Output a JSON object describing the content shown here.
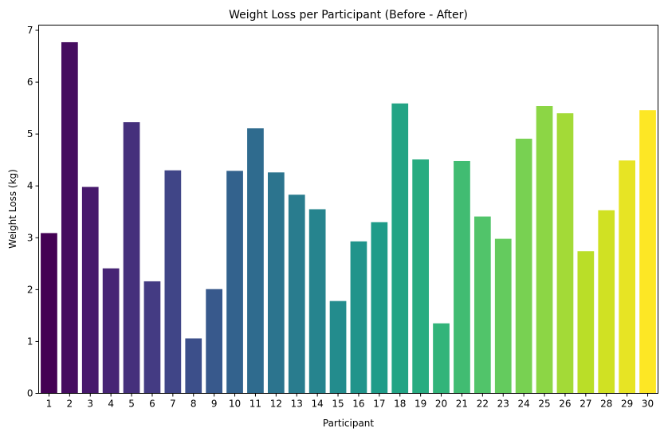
{
  "chart_data": {
    "type": "bar",
    "title": "Weight Loss per Participant (Before - After)",
    "xlabel": "Participant",
    "ylabel": "Weight Loss (kg)",
    "categories": [
      "1",
      "2",
      "3",
      "4",
      "5",
      "6",
      "7",
      "8",
      "9",
      "10",
      "11",
      "12",
      "13",
      "14",
      "15",
      "16",
      "17",
      "18",
      "19",
      "20",
      "21",
      "22",
      "23",
      "24",
      "25",
      "26",
      "27",
      "28",
      "29",
      "30"
    ],
    "values": [
      3.09,
      6.77,
      3.98,
      2.41,
      5.23,
      2.16,
      4.3,
      1.06,
      2.01,
      4.29,
      5.11,
      4.26,
      3.83,
      3.55,
      1.78,
      2.93,
      3.3,
      5.59,
      4.51,
      1.35,
      4.48,
      3.41,
      2.98,
      4.91,
      5.54,
      5.4,
      2.74,
      3.53,
      4.49,
      5.46
    ],
    "yticks": [
      "0",
      "1",
      "2",
      "3",
      "4",
      "5",
      "6",
      "7"
    ],
    "ylim": [
      0,
      7.1
    ],
    "grid": false,
    "colormap": "viridis",
    "colors": [
      "#440154",
      "#482173",
      "#433e85",
      "#38588c",
      "#2d708e",
      "#25858e",
      "#1e9b8a",
      "#2ab07f",
      "#52c569",
      "#86d549",
      "#c2df23",
      "#fde725"
    ]
  }
}
